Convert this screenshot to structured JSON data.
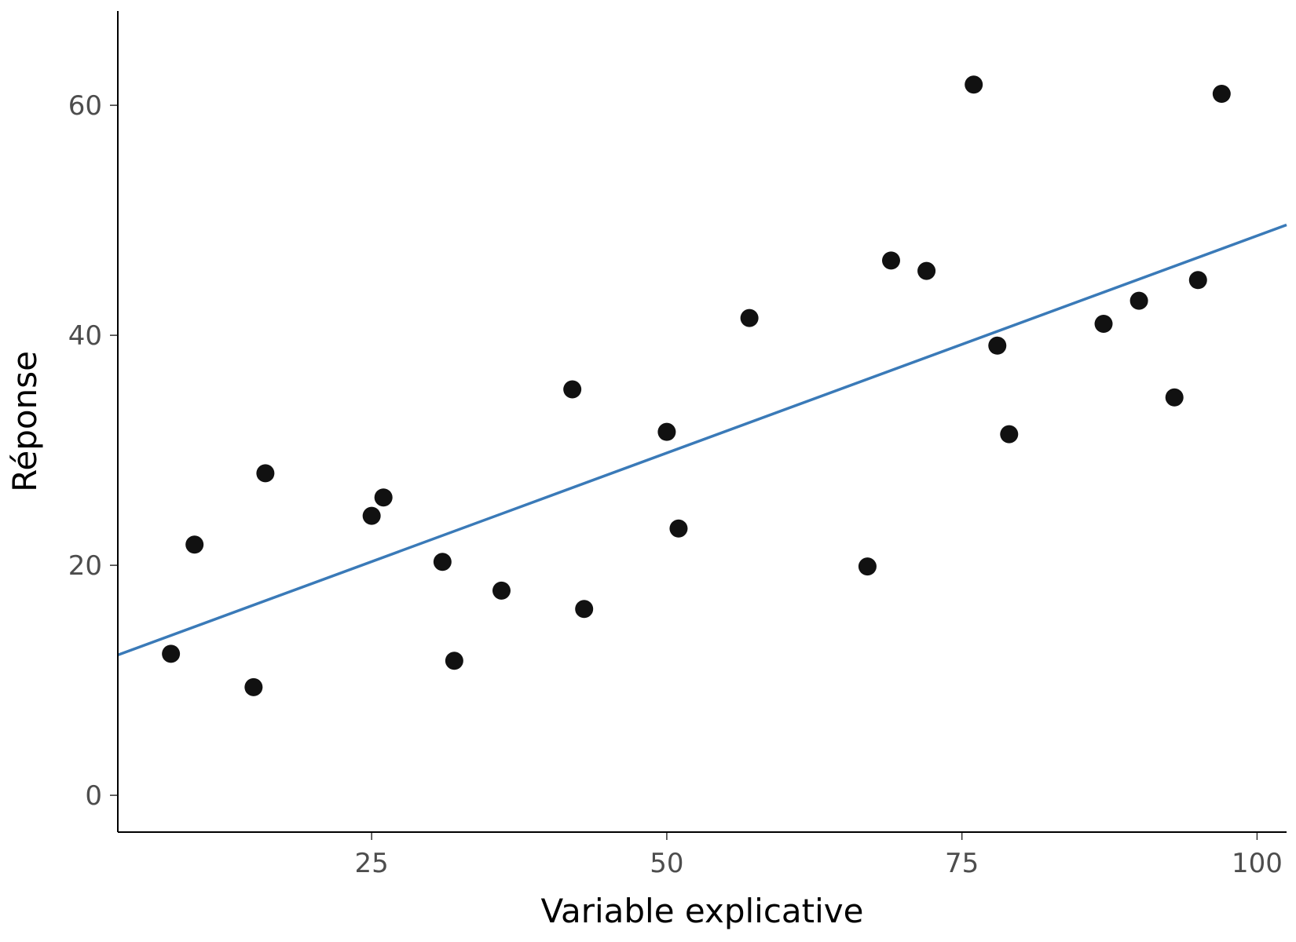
{
  "chart_data": {
    "type": "scatter",
    "title": "",
    "xlabel": "Variable explicative",
    "ylabel": "Réponse",
    "xlim": [
      3.5,
      102.5
    ],
    "ylim": [
      -3.2,
      68.2
    ],
    "x_ticks": [
      25,
      50,
      75,
      100
    ],
    "x_tick_labels": [
      "25",
      "50",
      "75",
      "100"
    ],
    "y_ticks": [
      0,
      20,
      40,
      60
    ],
    "y_tick_labels": [
      "0",
      "20",
      "40",
      "60"
    ],
    "grid": false,
    "legend": "none",
    "point_color": "#111111",
    "line_color": "#3a7ab8",
    "points": [
      {
        "x": 8,
        "y": 12.3
      },
      {
        "x": 10,
        "y": 21.8
      },
      {
        "x": 15,
        "y": 9.4
      },
      {
        "x": 16,
        "y": 28.0
      },
      {
        "x": 25,
        "y": 24.3
      },
      {
        "x": 26,
        "y": 25.9
      },
      {
        "x": 31,
        "y": 20.3
      },
      {
        "x": 32,
        "y": 11.7
      },
      {
        "x": 36,
        "y": 17.8
      },
      {
        "x": 42,
        "y": 35.3
      },
      {
        "x": 43,
        "y": 16.2
      },
      {
        "x": 50,
        "y": 31.6
      },
      {
        "x": 51,
        "y": 23.2
      },
      {
        "x": 57,
        "y": 41.5
      },
      {
        "x": 67,
        "y": 19.9
      },
      {
        "x": 69,
        "y": 46.5
      },
      {
        "x": 72,
        "y": 45.6
      },
      {
        "x": 76,
        "y": 61.8
      },
      {
        "x": 78,
        "y": 39.1
      },
      {
        "x": 79,
        "y": 31.4
      },
      {
        "x": 87,
        "y": 41.0
      },
      {
        "x": 90,
        "y": 43.0
      },
      {
        "x": 93,
        "y": 34.6
      },
      {
        "x": 95,
        "y": 44.8
      },
      {
        "x": 97,
        "y": 61.0
      }
    ],
    "trend_line": {
      "x": [
        3.5,
        102.5
      ],
      "y": [
        12.2,
        49.6
      ]
    }
  }
}
